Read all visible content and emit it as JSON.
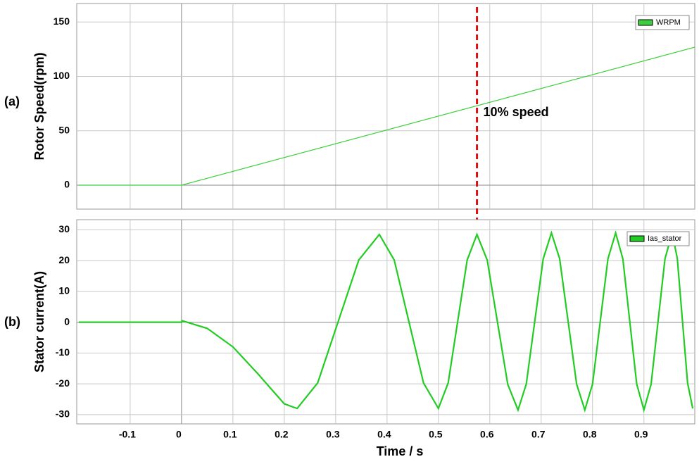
{
  "chart_data": [
    {
      "type": "line",
      "panel_label": "(a)",
      "ylabel": "Rotor Speed(rpm)",
      "x": [
        -0.2,
        0,
        1.0
      ],
      "series": [
        {
          "name": "WRPM",
          "color": "#3ccf3c",
          "values": [
            0,
            0,
            127
          ]
        }
      ],
      "xlim": [
        -0.204,
        0.999
      ],
      "xticks": [
        -0.1,
        0,
        0.1,
        0.2,
        0.3,
        0.4,
        0.5,
        0.6,
        0.7,
        0.8,
        0.9
      ],
      "ylim": [
        -22,
        167
      ],
      "yticks": [
        0,
        50,
        100,
        150
      ],
      "xtick_labels": false,
      "grid": true,
      "legend": "upper right",
      "annotation": {
        "text": "10% speed",
        "x": 0.575,
        "color": "#e01010"
      }
    },
    {
      "type": "line",
      "panel_label": "(b)",
      "ylabel": "Stator current(A)",
      "xlabel": "Time / s",
      "x": [
        -0.2,
        0,
        0.001,
        0.05,
        0.1,
        0.15,
        0.2,
        0.225,
        0.265,
        0.305,
        0.345,
        0.385,
        0.414,
        0.4425,
        0.471,
        0.5,
        0.519,
        0.5375,
        0.556,
        0.575,
        0.595,
        0.615,
        0.635,
        0.655,
        0.671,
        0.6875,
        0.704,
        0.72,
        0.736,
        0.7525,
        0.769,
        0.785,
        0.8,
        0.815,
        0.83,
        0.845,
        0.859,
        0.8725,
        0.886,
        0.9,
        0.914,
        0.9275,
        0.941,
        0.955,
        0.965,
        0.975,
        0.985,
        0.995
      ],
      "series": [
        {
          "name": "Ias_stator",
          "color": "#22cc22",
          "values": [
            0,
            0,
            0.5,
            -2,
            -8,
            -17,
            -26.5,
            -28,
            -19.7,
            0.25,
            20.2,
            28.5,
            20.2,
            0.25,
            -19.7,
            -28,
            -19.7,
            0.25,
            20.2,
            28.5,
            20.2,
            0,
            -20.2,
            -28.5,
            -20.1,
            0.25,
            20.6,
            29,
            20.6,
            0.25,
            -20.1,
            -28.5,
            -20.1,
            0.25,
            20.6,
            29,
            20.6,
            0.25,
            -20.1,
            -28.5,
            -20.1,
            0.25,
            20.6,
            29,
            20.7,
            0.5,
            -19.7,
            -28
          ]
        }
      ],
      "xlim": [
        -0.204,
        0.999
      ],
      "xticks": [
        -0.1,
        0,
        0.1,
        0.2,
        0.3,
        0.4,
        0.5,
        0.6,
        0.7,
        0.8,
        0.9
      ],
      "ylim": [
        -33,
        33.3
      ],
      "yticks": [
        -30,
        -20,
        -10,
        0,
        10,
        20,
        30
      ],
      "xtick_labels": true,
      "grid": true,
      "legend": "upper right"
    }
  ]
}
